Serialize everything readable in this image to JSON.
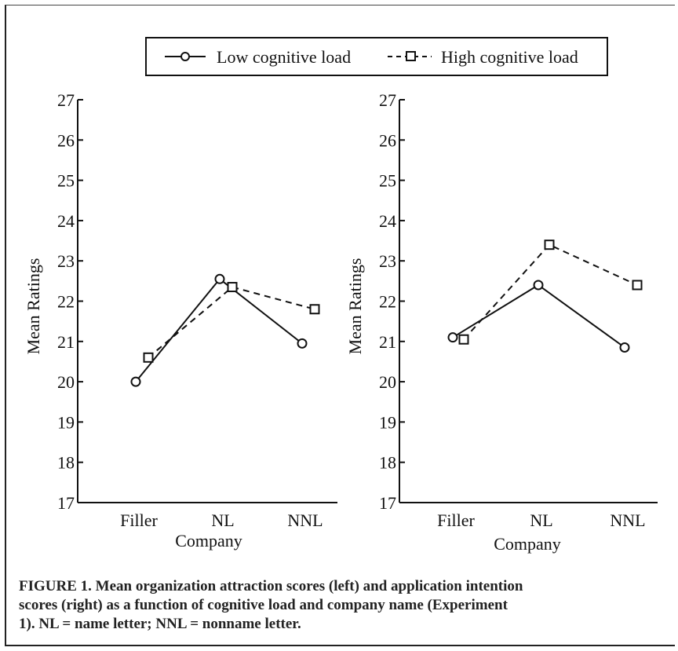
{
  "legend": {
    "low_label": "Low cognitive load",
    "high_label": "High cognitive load"
  },
  "caption": {
    "line1": "FIGURE 1. Mean organization attraction scores (left) and application intention",
    "line2": "scores (right) as a function of cognitive load and company name (Experiment",
    "line3": "1). NL = name letter; NNL = nonname letter."
  },
  "colors": {
    "ink": "#111111"
  },
  "chart_data": [
    {
      "type": "line",
      "categories": [
        "Filler",
        "NL",
        "NNL"
      ],
      "xlabel": "Company",
      "ylabel": "Mean Ratings",
      "ylim": [
        17,
        27
      ],
      "yticks": [
        "17",
        "18",
        "19",
        "20",
        "21",
        "22",
        "23",
        "24",
        "25",
        "26",
        "27"
      ],
      "grid": false,
      "legend": "top",
      "series": [
        {
          "name": "Low cognitive load",
          "values": [
            20.0,
            22.55,
            20.95
          ],
          "style": "solid",
          "marker": "circle"
        },
        {
          "name": "High cognitive load",
          "values": [
            20.6,
            22.35,
            21.8
          ],
          "style": "dashed",
          "marker": "square"
        }
      ]
    },
    {
      "type": "line",
      "categories": [
        "Filler",
        "NL",
        "NNL"
      ],
      "xlabel": "Company",
      "ylabel": "Mean Ratings",
      "ylim": [
        17,
        27
      ],
      "yticks": [
        "17",
        "18",
        "19",
        "20",
        "21",
        "22",
        "23",
        "24",
        "25",
        "26",
        "27"
      ],
      "grid": false,
      "legend": "top",
      "series": [
        {
          "name": "Low cognitive load",
          "values": [
            21.1,
            22.4,
            20.85
          ],
          "style": "solid",
          "marker": "circle"
        },
        {
          "name": "High cognitive load",
          "values": [
            21.05,
            23.4,
            22.4
          ],
          "style": "dashed",
          "marker": "square"
        }
      ]
    }
  ]
}
